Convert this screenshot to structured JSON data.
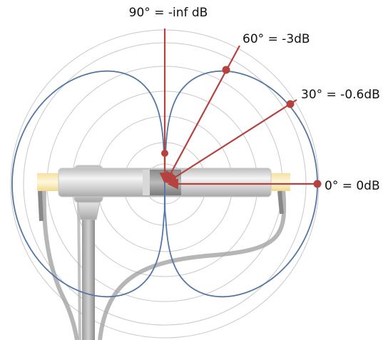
{
  "labels": [
    "90° = -inf dB",
    "60° = -3dB",
    "30° = -0.6dB",
    "0° = 0dB"
  ]
}
